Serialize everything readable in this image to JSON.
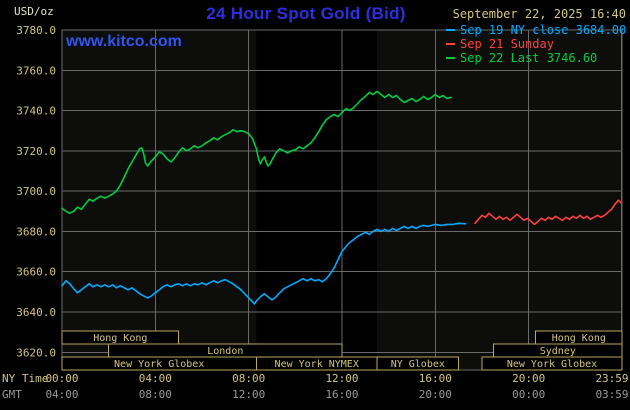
{
  "header": {
    "unit_label": "USD/oz",
    "title": "24 Hour Spot Gold (Bid)",
    "datetime": "September 22, 2025 16:40"
  },
  "watermark": "www.kitco.com",
  "legend": [
    {
      "label": "Sep 19 NY close 3684.00",
      "color": "#00aaff"
    },
    {
      "label": "Sep 21 Sunday",
      "color": "#ff4040"
    },
    {
      "label": "Sep 22 Last 3746.60",
      "color": "#00cc44"
    }
  ],
  "colors": {
    "background": "#000000",
    "plot_bg": "#0d0d0b",
    "band": "#000000",
    "grid": "#6a6a6a",
    "axis_text": "#d2c682",
    "gmt_text": "#9a9a9a",
    "session_border": "#b8a75e",
    "session_text": "#d2c682",
    "title_blue": "#2e2ee0",
    "watermark_blue": "#3355ee",
    "unit_text": "#e6e2c8"
  },
  "chart_data": {
    "type": "line",
    "title": "24 Hour Spot Gold (Bid)",
    "ylabel": "USD/oz",
    "ylim": [
      3620,
      3780
    ],
    "y_tick_step": 20,
    "x_hours_lim": [
      0,
      24
    ],
    "x_tick_hours": [
      0,
      4,
      8,
      12,
      16,
      20,
      23.983
    ],
    "x_ticks_ny": [
      "00:00",
      "04:00",
      "08:00",
      "12:00",
      "16:00",
      "20:00",
      "23:59"
    ],
    "x_ticks_gmt": [
      "04:00",
      "08:00",
      "12:00",
      "16:00",
      "20:00",
      "00:00",
      "03:59"
    ],
    "x_axis_label_ny": "NY Time",
    "x_axis_label_gmt": "GMT",
    "grid": true,
    "nymex_band_hours": [
      8.33,
      13.5
    ],
    "last_price": 3746.6,
    "prev_close": 3684.0,
    "series": [
      {
        "id": "sep19",
        "name": "Sep 19 NY close 3684.00",
        "color": "#00aaff",
        "points": [
          [
            0,
            3653
          ],
          [
            0.17,
            3655.5
          ],
          [
            0.33,
            3654
          ],
          [
            0.5,
            3651.5
          ],
          [
            0.67,
            3649.5
          ],
          [
            0.83,
            3651
          ],
          [
            1,
            3652.5
          ],
          [
            1.17,
            3654
          ],
          [
            1.33,
            3652.5
          ],
          [
            1.5,
            3653.5
          ],
          [
            1.67,
            3652.5
          ],
          [
            1.83,
            3653.5
          ],
          [
            2,
            3652.5
          ],
          [
            2.17,
            3653.5
          ],
          [
            2.33,
            3652
          ],
          [
            2.5,
            3653
          ],
          [
            2.67,
            3652
          ],
          [
            2.83,
            3651
          ],
          [
            3,
            3652
          ],
          [
            3.17,
            3650.5
          ],
          [
            3.33,
            3649
          ],
          [
            3.5,
            3648
          ],
          [
            3.67,
            3647
          ],
          [
            3.83,
            3648
          ],
          [
            4,
            3649.5
          ],
          [
            4.17,
            3651
          ],
          [
            4.33,
            3652.5
          ],
          [
            4.5,
            3653.5
          ],
          [
            4.67,
            3652.5
          ],
          [
            4.83,
            3653.5
          ],
          [
            5,
            3654
          ],
          [
            5.17,
            3653
          ],
          [
            5.33,
            3654
          ],
          [
            5.5,
            3653
          ],
          [
            5.67,
            3654
          ],
          [
            5.83,
            3653.5
          ],
          [
            6,
            3654.5
          ],
          [
            6.17,
            3653.5
          ],
          [
            6.33,
            3654.5
          ],
          [
            6.5,
            3655.5
          ],
          [
            6.67,
            3654.5
          ],
          [
            6.83,
            3655.5
          ],
          [
            7,
            3656
          ],
          [
            7.17,
            3655
          ],
          [
            7.33,
            3654
          ],
          [
            7.5,
            3652.5
          ],
          [
            7.67,
            3651
          ],
          [
            7.83,
            3649
          ],
          [
            8,
            3647
          ],
          [
            8.17,
            3645
          ],
          [
            8.25,
            3644
          ],
          [
            8.33,
            3645.5
          ],
          [
            8.5,
            3647.5
          ],
          [
            8.67,
            3649
          ],
          [
            8.83,
            3647.5
          ],
          [
            9,
            3646
          ],
          [
            9.17,
            3647.5
          ],
          [
            9.33,
            3649.5
          ],
          [
            9.5,
            3651.5
          ],
          [
            9.67,
            3652.5
          ],
          [
            9.83,
            3653.5
          ],
          [
            10,
            3654.5
          ],
          [
            10.17,
            3655.5
          ],
          [
            10.33,
            3656.5
          ],
          [
            10.5,
            3655.5
          ],
          [
            10.67,
            3656.5
          ],
          [
            10.83,
            3655.5
          ],
          [
            11,
            3656
          ],
          [
            11.17,
            3655
          ],
          [
            11.33,
            3656.5
          ],
          [
            11.5,
            3659
          ],
          [
            11.67,
            3662
          ],
          [
            11.83,
            3666
          ],
          [
            12,
            3670
          ],
          [
            12.17,
            3672.5
          ],
          [
            12.33,
            3674.5
          ],
          [
            12.5,
            3676
          ],
          [
            12.67,
            3677.5
          ],
          [
            12.83,
            3678.5
          ],
          [
            13,
            3679.5
          ],
          [
            13.17,
            3678.5
          ],
          [
            13.33,
            3680
          ],
          [
            13.5,
            3681
          ],
          [
            13.67,
            3680
          ],
          [
            13.83,
            3681
          ],
          [
            14,
            3680
          ],
          [
            14.17,
            3681.5
          ],
          [
            14.33,
            3680.5
          ],
          [
            14.5,
            3681.5
          ],
          [
            14.67,
            3682.5
          ],
          [
            14.83,
            3681.5
          ],
          [
            15,
            3682.5
          ],
          [
            15.17,
            3681.5
          ],
          [
            15.33,
            3682.5
          ],
          [
            15.5,
            3683
          ],
          [
            15.67,
            3682.5
          ],
          [
            15.83,
            3683
          ],
          [
            16,
            3683.5
          ],
          [
            16.25,
            3683
          ],
          [
            16.5,
            3683.5
          ],
          [
            16.75,
            3683.5
          ],
          [
            17,
            3684
          ],
          [
            17.3,
            3683.8
          ]
        ]
      },
      {
        "id": "sep21",
        "name": "Sep 21 Sunday",
        "color": "#ff4040",
        "points": [
          [
            17.7,
            3684
          ],
          [
            17.85,
            3686
          ],
          [
            18,
            3688
          ],
          [
            18.15,
            3687
          ],
          [
            18.3,
            3689
          ],
          [
            18.45,
            3687.5
          ],
          [
            18.6,
            3686
          ],
          [
            18.75,
            3687.5
          ],
          [
            18.9,
            3686
          ],
          [
            19.05,
            3687
          ],
          [
            19.2,
            3685.5
          ],
          [
            19.35,
            3687
          ],
          [
            19.5,
            3688.5
          ],
          [
            19.65,
            3687
          ],
          [
            19.8,
            3685.5
          ],
          [
            19.95,
            3686.5
          ],
          [
            20.1,
            3685
          ],
          [
            20.25,
            3683.5
          ],
          [
            20.4,
            3685
          ],
          [
            20.55,
            3686.5
          ],
          [
            20.7,
            3685.5
          ],
          [
            20.85,
            3687
          ],
          [
            21,
            3686
          ],
          [
            21.15,
            3687.5
          ],
          [
            21.3,
            3686.5
          ],
          [
            21.45,
            3685.5
          ],
          [
            21.6,
            3687
          ],
          [
            21.75,
            3686
          ],
          [
            21.9,
            3687.5
          ],
          [
            22.05,
            3686.5
          ],
          [
            22.2,
            3688
          ],
          [
            22.35,
            3686.5
          ],
          [
            22.5,
            3687.5
          ],
          [
            22.65,
            3686
          ],
          [
            22.8,
            3687
          ],
          [
            22.95,
            3688
          ],
          [
            23.1,
            3687
          ],
          [
            23.25,
            3688
          ],
          [
            23.4,
            3689.5
          ],
          [
            23.55,
            3691
          ],
          [
            23.7,
            3693.5
          ],
          [
            23.85,
            3695.5
          ],
          [
            23.98,
            3694
          ]
        ]
      },
      {
        "id": "sep22",
        "name": "Sep 22 Last 3746.60",
        "color": "#00cc44",
        "points": [
          [
            0,
            3691.5
          ],
          [
            0.17,
            3690
          ],
          [
            0.33,
            3689
          ],
          [
            0.5,
            3690
          ],
          [
            0.67,
            3692
          ],
          [
            0.83,
            3691
          ],
          [
            1,
            3693.5
          ],
          [
            1.17,
            3696
          ],
          [
            1.33,
            3695
          ],
          [
            1.5,
            3696.5
          ],
          [
            1.67,
            3697.5
          ],
          [
            1.83,
            3696.5
          ],
          [
            2,
            3697.5
          ],
          [
            2.17,
            3698.5
          ],
          [
            2.33,
            3700
          ],
          [
            2.5,
            3703
          ],
          [
            2.67,
            3707
          ],
          [
            2.83,
            3711
          ],
          [
            3,
            3714.5
          ],
          [
            3.17,
            3718
          ],
          [
            3.33,
            3721
          ],
          [
            3.42,
            3721.5
          ],
          [
            3.5,
            3718.5
          ],
          [
            3.58,
            3714
          ],
          [
            3.67,
            3712.5
          ],
          [
            3.83,
            3715
          ],
          [
            4,
            3717
          ],
          [
            4.17,
            3719.5
          ],
          [
            4.33,
            3718.5
          ],
          [
            4.5,
            3716
          ],
          [
            4.67,
            3714.5
          ],
          [
            4.83,
            3716.5
          ],
          [
            5,
            3719.5
          ],
          [
            5.17,
            3721.5
          ],
          [
            5.33,
            3720
          ],
          [
            5.5,
            3721
          ],
          [
            5.67,
            3722.5
          ],
          [
            5.83,
            3721.5
          ],
          [
            6,
            3722.5
          ],
          [
            6.17,
            3724
          ],
          [
            6.33,
            3725
          ],
          [
            6.5,
            3726.5
          ],
          [
            6.67,
            3725.5
          ],
          [
            6.83,
            3727
          ],
          [
            7,
            3728
          ],
          [
            7.17,
            3729
          ],
          [
            7.33,
            3730.5
          ],
          [
            7.5,
            3729.5
          ],
          [
            7.67,
            3730
          ],
          [
            7.83,
            3729.5
          ],
          [
            8,
            3728.5
          ],
          [
            8.17,
            3726
          ],
          [
            8.33,
            3721
          ],
          [
            8.42,
            3716
          ],
          [
            8.5,
            3713.5
          ],
          [
            8.58,
            3715.5
          ],
          [
            8.67,
            3717
          ],
          [
            8.75,
            3714.5
          ],
          [
            8.83,
            3712.5
          ],
          [
            8.92,
            3713.5
          ],
          [
            9,
            3715.5
          ],
          [
            9.17,
            3719
          ],
          [
            9.33,
            3721
          ],
          [
            9.5,
            3720
          ],
          [
            9.67,
            3719
          ],
          [
            9.83,
            3720
          ],
          [
            10,
            3720.5
          ],
          [
            10.17,
            3722
          ],
          [
            10.33,
            3721
          ],
          [
            10.5,
            3722.5
          ],
          [
            10.67,
            3724
          ],
          [
            10.83,
            3726.5
          ],
          [
            11,
            3729.5
          ],
          [
            11.17,
            3733
          ],
          [
            11.33,
            3735.5
          ],
          [
            11.5,
            3737
          ],
          [
            11.67,
            3738
          ],
          [
            11.83,
            3737
          ],
          [
            12,
            3739
          ],
          [
            12.17,
            3741
          ],
          [
            12.33,
            3740
          ],
          [
            12.5,
            3741.5
          ],
          [
            12.67,
            3743.5
          ],
          [
            12.83,
            3745.5
          ],
          [
            13,
            3747
          ],
          [
            13.17,
            3749
          ],
          [
            13.33,
            3748
          ],
          [
            13.5,
            3749.5
          ],
          [
            13.67,
            3748
          ],
          [
            13.83,
            3746.5
          ],
          [
            14,
            3748
          ],
          [
            14.17,
            3746.5
          ],
          [
            14.33,
            3747.5
          ],
          [
            14.5,
            3745.5
          ],
          [
            14.67,
            3744
          ],
          [
            14.83,
            3745
          ],
          [
            15,
            3746
          ],
          [
            15.17,
            3744.5
          ],
          [
            15.33,
            3745.5
          ],
          [
            15.5,
            3747
          ],
          [
            15.67,
            3745.5
          ],
          [
            15.83,
            3746.5
          ],
          [
            16,
            3748
          ],
          [
            16.17,
            3746.5
          ],
          [
            16.33,
            3747.5
          ],
          [
            16.5,
            3746
          ],
          [
            16.67,
            3746.6
          ]
        ]
      }
    ],
    "sessions": [
      {
        "row": 0,
        "label": "Hong Kong",
        "start": 0,
        "end": 5.0
      },
      {
        "row": 0,
        "label": "Hong Kong",
        "start": 20.3,
        "end": 24
      },
      {
        "row": 1,
        "label": "London",
        "start": 2.0,
        "end": 12.0
      },
      {
        "row": 1,
        "label": "Sydney",
        "start": 18.5,
        "end": 24
      },
      {
        "row": 2,
        "label": "New York Globex",
        "start": 0,
        "end": 8.33
      },
      {
        "row": 2,
        "label": "New York NYMEX",
        "start": 8.33,
        "end": 13.5
      },
      {
        "row": 2,
        "label": "NY Globex",
        "start": 13.5,
        "end": 17.0
      },
      {
        "row": 2,
        "label": "New York Globex",
        "start": 18.0,
        "end": 24
      }
    ]
  }
}
